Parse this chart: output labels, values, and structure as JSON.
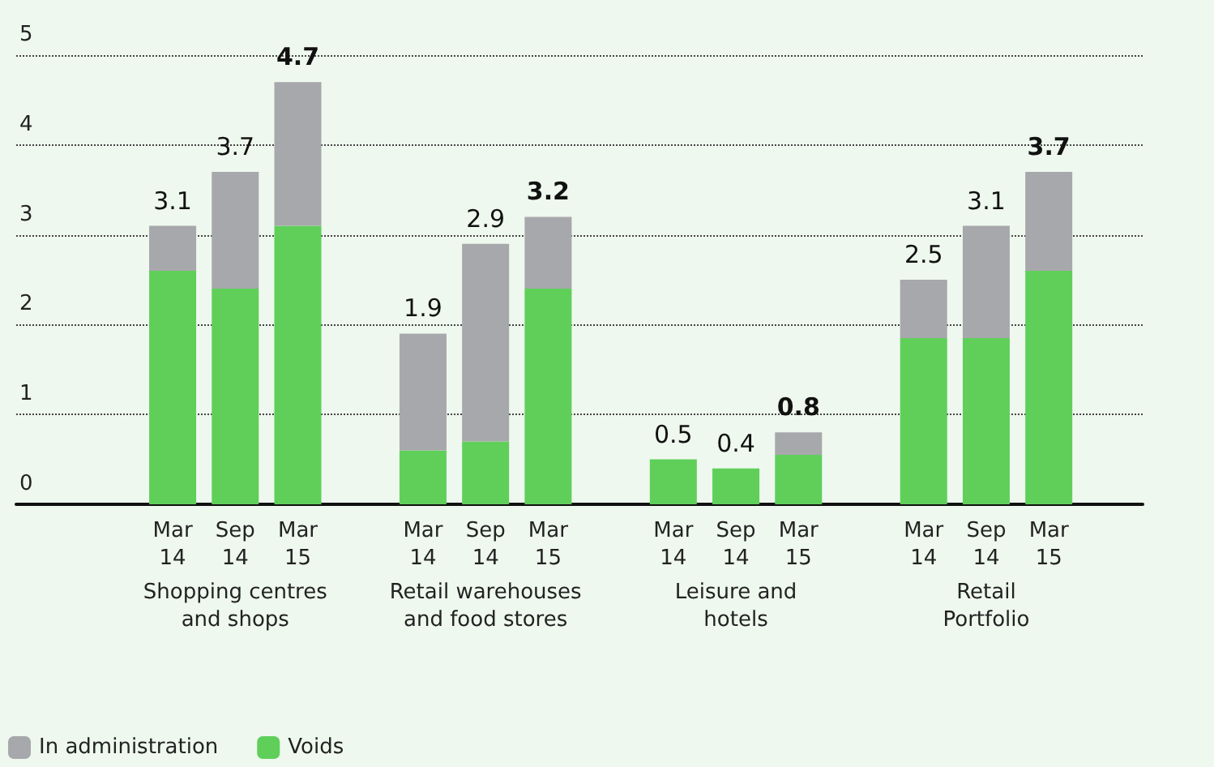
{
  "chart_data": {
    "type": "bar",
    "stacked": true,
    "categories": [
      null,
      null,
      "Mar 14",
      "Sep 14",
      "Mar 15",
      null,
      "Mar 14",
      "Sep 14",
      "Mar 15",
      null,
      "Mar 14",
      "Sep 14",
      "Mar 15",
      null,
      "Mar 14",
      "Sep 14",
      "Mar 15",
      null
    ],
    "series": [
      {
        "name": "Voids",
        "color": "#5fcf5a",
        "values": [
          null,
          null,
          2.6,
          2.4,
          3.1,
          null,
          0.6,
          0.7,
          2.4,
          null,
          0.5,
          0.4,
          0.55,
          null,
          1.85,
          1.85,
          2.6,
          null
        ]
      },
      {
        "name": "In administration",
        "color": "#a7a8ab",
        "values": [
          null,
          null,
          0.5,
          1.3,
          1.6,
          null,
          1.3,
          2.2,
          0.8,
          null,
          0,
          0,
          0.25,
          null,
          0.65,
          1.25,
          1.1,
          null
        ]
      }
    ],
    "totals": [
      null,
      null,
      "3.1",
      "3.7",
      "4.7",
      null,
      "1.9",
      "2.9",
      "3.2",
      null,
      "0.5",
      "0.4",
      "0.8",
      null,
      "2.5",
      "3.1",
      "3.7",
      null
    ],
    "annotations": [
      "Shopping centres\nand shops",
      "Retail warehouses\nand food stores",
      "Leisure and\nhotels",
      "Retail\nPortfolio"
    ],
    "ylim": [
      0,
      5
    ],
    "yticks": [
      0,
      1,
      2,
      3,
      4,
      5
    ],
    "grid": "y",
    "legend": "bottom left"
  }
}
